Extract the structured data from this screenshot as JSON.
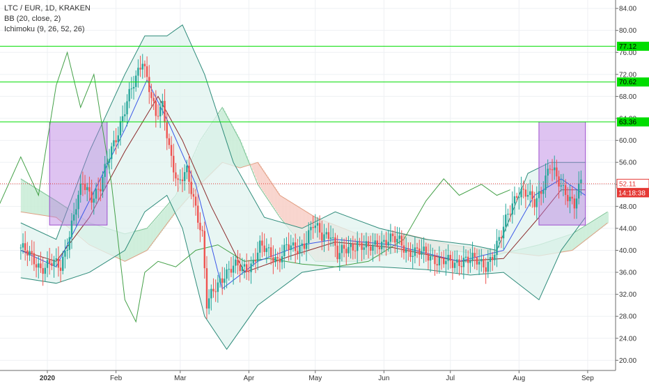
{
  "chart_data": {
    "type": "candlestick",
    "title": "LTC / EUR, 1D, KRAKEN",
    "indicators": [
      "BB (20, close, 2)",
      "Ichimoku (9, 26, 52, 26)"
    ],
    "ylim": [
      18,
      86
    ],
    "y_ticks": [
      "20.00",
      "24.00",
      "28.00",
      "32.00",
      "36.00",
      "40.00",
      "44.00",
      "48.00",
      "52.00",
      "56.00",
      "60.00",
      "64.00",
      "68.00",
      "72.00",
      "76.00",
      "80.00",
      "84.00"
    ],
    "x_labels": [
      "2020",
      "Feb",
      "Mar",
      "Apr",
      "May",
      "Jun",
      "Jul",
      "Aug",
      "Sep"
    ],
    "horizontal_levels": [
      {
        "label": "77.12",
        "value": 77.12,
        "color": "#00dd00"
      },
      {
        "label": "70.62",
        "value": 70.62,
        "color": "#00dd00"
      },
      {
        "label": "63.36",
        "value": 63.36,
        "color": "#00dd00"
      }
    ],
    "last_price": {
      "label": "52.11",
      "value": 52.11,
      "countdown": "14:18:38",
      "color": "#e53935"
    },
    "boxes": [
      {
        "from": "2020-01-02",
        "to": "2020-01-28",
        "low": 44.6,
        "high": 63.36
      },
      {
        "from": "2020-08-10",
        "to": "2020-08-31",
        "low": 44.6,
        "high": 63.36
      }
    ],
    "price_series": [
      {
        "date": "2019-12-20",
        "close": 40.5
      },
      {
        "date": "2019-12-25",
        "close": 38.5
      },
      {
        "date": "2019-12-29",
        "close": 37.0
      },
      {
        "date": "2020-01-03",
        "close": 37.5
      },
      {
        "date": "2020-01-07",
        "close": 37.0
      },
      {
        "date": "2020-01-10",
        "close": 41.5
      },
      {
        "date": "2020-01-14",
        "close": 48.0
      },
      {
        "date": "2020-01-17",
        "close": 52.0
      },
      {
        "date": "2020-01-21",
        "close": 50.0
      },
      {
        "date": "2020-01-25",
        "close": 51.5
      },
      {
        "date": "2020-01-29",
        "close": 57.0
      },
      {
        "date": "2020-02-02",
        "close": 62.0
      },
      {
        "date": "2020-02-06",
        "close": 67.0
      },
      {
        "date": "2020-02-10",
        "close": 71.0
      },
      {
        "date": "2020-02-13",
        "close": 75.0
      },
      {
        "date": "2020-02-16",
        "close": 70.0
      },
      {
        "date": "2020-02-19",
        "close": 64.0
      },
      {
        "date": "2020-02-22",
        "close": 66.0
      },
      {
        "date": "2020-02-25",
        "close": 59.0
      },
      {
        "date": "2020-02-29",
        "close": 52.0
      },
      {
        "date": "2020-03-04",
        "close": 54.0
      },
      {
        "date": "2020-03-08",
        "close": 48.0
      },
      {
        "date": "2020-03-11",
        "close": 43.0
      },
      {
        "date": "2020-03-13",
        "close": 30.0
      },
      {
        "date": "2020-03-17",
        "close": 33.0
      },
      {
        "date": "2020-03-21",
        "close": 36.0
      },
      {
        "date": "2020-03-25",
        "close": 37.0
      },
      {
        "date": "2020-03-29",
        "close": 36.5
      },
      {
        "date": "2020-04-02",
        "close": 37.5
      },
      {
        "date": "2020-04-06",
        "close": 40.5
      },
      {
        "date": "2020-04-10",
        "close": 39.5
      },
      {
        "date": "2020-04-14",
        "close": 38.5
      },
      {
        "date": "2020-04-18",
        "close": 40.5
      },
      {
        "date": "2020-04-22",
        "close": 40.0
      },
      {
        "date": "2020-04-26",
        "close": 41.5
      },
      {
        "date": "2020-04-30",
        "close": 44.5
      },
      {
        "date": "2020-05-04",
        "close": 42.5
      },
      {
        "date": "2020-05-08",
        "close": 43.5
      },
      {
        "date": "2020-05-11",
        "close": 39.0
      },
      {
        "date": "2020-05-15",
        "close": 40.0
      },
      {
        "date": "2020-05-20",
        "close": 41.5
      },
      {
        "date": "2020-05-25",
        "close": 40.0
      },
      {
        "date": "2020-05-30",
        "close": 41.5
      },
      {
        "date": "2020-06-03",
        "close": 42.0
      },
      {
        "date": "2020-06-08",
        "close": 41.5
      },
      {
        "date": "2020-06-12",
        "close": 40.0
      },
      {
        "date": "2020-06-17",
        "close": 39.5
      },
      {
        "date": "2020-06-22",
        "close": 39.0
      },
      {
        "date": "2020-06-27",
        "close": 38.0
      },
      {
        "date": "2020-07-02",
        "close": 37.5
      },
      {
        "date": "2020-07-07",
        "close": 38.5
      },
      {
        "date": "2020-07-12",
        "close": 38.0
      },
      {
        "date": "2020-07-17",
        "close": 37.5
      },
      {
        "date": "2020-07-21",
        "close": 39.5
      },
      {
        "date": "2020-07-24",
        "close": 42.5
      },
      {
        "date": "2020-07-27",
        "close": 47.0
      },
      {
        "date": "2020-07-31",
        "close": 50.5
      },
      {
        "date": "2020-08-04",
        "close": 50.0
      },
      {
        "date": "2020-08-08",
        "close": 49.0
      },
      {
        "date": "2020-08-12",
        "close": 52.0
      },
      {
        "date": "2020-08-15",
        "close": 55.0
      },
      {
        "date": "2020-08-18",
        "close": 53.0
      },
      {
        "date": "2020-08-22",
        "close": 51.0
      },
      {
        "date": "2020-08-26",
        "close": 48.0
      },
      {
        "date": "2020-08-29",
        "close": 52.11
      }
    ],
    "bb_upper": [
      {
        "date": "2019-12-20",
        "v": 45
      },
      {
        "date": "2020-01-05",
        "v": 42
      },
      {
        "date": "2020-01-20",
        "v": 58
      },
      {
        "date": "2020-02-05",
        "v": 72
      },
      {
        "date": "2020-02-14",
        "v": 79
      },
      {
        "date": "2020-02-24",
        "v": 79
      },
      {
        "date": "2020-03-02",
        "v": 81
      },
      {
        "date": "2020-03-12",
        "v": 72
      },
      {
        "date": "2020-03-25",
        "v": 56
      },
      {
        "date": "2020-04-08",
        "v": 46
      },
      {
        "date": "2020-04-25",
        "v": 44
      },
      {
        "date": "2020-05-10",
        "v": 47
      },
      {
        "date": "2020-05-30",
        "v": 44
      },
      {
        "date": "2020-06-20",
        "v": 42
      },
      {
        "date": "2020-07-10",
        "v": 41
      },
      {
        "date": "2020-07-22",
        "v": 40
      },
      {
        "date": "2020-08-05",
        "v": 54
      },
      {
        "date": "2020-08-15",
        "v": 56
      },
      {
        "date": "2020-08-31",
        "v": 56
      }
    ],
    "bb_lower": [
      {
        "date": "2019-12-20",
        "v": 35
      },
      {
        "date": "2020-01-05",
        "v": 34
      },
      {
        "date": "2020-01-20",
        "v": 36
      },
      {
        "date": "2020-02-05",
        "v": 40
      },
      {
        "date": "2020-02-14",
        "v": 47
      },
      {
        "date": "2020-02-24",
        "v": 50
      },
      {
        "date": "2020-03-02",
        "v": 44
      },
      {
        "date": "2020-03-12",
        "v": 28
      },
      {
        "date": "2020-03-22",
        "v": 22
      },
      {
        "date": "2020-04-05",
        "v": 30
      },
      {
        "date": "2020-04-25",
        "v": 36
      },
      {
        "date": "2020-05-10",
        "v": 37
      },
      {
        "date": "2020-05-30",
        "v": 37
      },
      {
        "date": "2020-06-20",
        "v": 36.5
      },
      {
        "date": "2020-07-10",
        "v": 35.5
      },
      {
        "date": "2020-07-25",
        "v": 36
      },
      {
        "date": "2020-08-10",
        "v": 31
      },
      {
        "date": "2020-08-20",
        "v": 40
      },
      {
        "date": "2020-08-31",
        "v": 46
      }
    ],
    "bb_basis": [
      {
        "date": "2019-12-20",
        "v": 40
      },
      {
        "date": "2020-01-05",
        "v": 38
      },
      {
        "date": "2020-01-20",
        "v": 46
      },
      {
        "date": "2020-02-05",
        "v": 58
      },
      {
        "date": "2020-02-20",
        "v": 68
      },
      {
        "date": "2020-03-02",
        "v": 60
      },
      {
        "date": "2020-03-15",
        "v": 48
      },
      {
        "date": "2020-03-30",
        "v": 36
      },
      {
        "date": "2020-04-20",
        "v": 39
      },
      {
        "date": "2020-05-10",
        "v": 41.5
      },
      {
        "date": "2020-06-05",
        "v": 40.5
      },
      {
        "date": "2020-07-05",
        "v": 38
      },
      {
        "date": "2020-07-25",
        "v": 38.5
      },
      {
        "date": "2020-08-10",
        "v": 46
      },
      {
        "date": "2020-08-20",
        "v": 51
      },
      {
        "date": "2020-08-31",
        "v": 51
      }
    ],
    "tenkan": [
      {
        "date": "2019-12-20",
        "v": 40
      },
      {
        "date": "2020-01-05",
        "v": 37
      },
      {
        "date": "2020-01-20",
        "v": 49
      },
      {
        "date": "2020-02-05",
        "v": 62
      },
      {
        "date": "2020-02-15",
        "v": 71
      },
      {
        "date": "2020-02-25",
        "v": 63
      },
      {
        "date": "2020-03-08",
        "v": 52
      },
      {
        "date": "2020-03-20",
        "v": 33
      },
      {
        "date": "2020-04-05",
        "v": 38
      },
      {
        "date": "2020-04-25",
        "v": 41
      },
      {
        "date": "2020-05-10",
        "v": 42
      },
      {
        "date": "2020-06-05",
        "v": 41
      },
      {
        "date": "2020-07-05",
        "v": 38
      },
      {
        "date": "2020-07-25",
        "v": 40
      },
      {
        "date": "2020-08-08",
        "v": 50
      },
      {
        "date": "2020-08-20",
        "v": 53
      },
      {
        "date": "2020-08-31",
        "v": 50
      }
    ],
    "lagging": [
      {
        "date": "2019-12-10",
        "v": 48
      },
      {
        "date": "2019-12-20",
        "v": 57
      },
      {
        "date": "2019-12-28",
        "v": 50
      },
      {
        "date": "2020-01-05",
        "v": 70
      },
      {
        "date": "2020-01-10",
        "v": 76
      },
      {
        "date": "2020-01-16",
        "v": 66
      },
      {
        "date": "2020-01-22",
        "v": 72
      },
      {
        "date": "2020-01-30",
        "v": 52
      },
      {
        "date": "2020-02-05",
        "v": 31
      },
      {
        "date": "2020-02-10",
        "v": 27
      },
      {
        "date": "2020-02-14",
        "v": 36
      },
      {
        "date": "2020-02-20",
        "v": 38
      },
      {
        "date": "2020-02-28",
        "v": 37
      },
      {
        "date": "2020-03-08",
        "v": 40
      },
      {
        "date": "2020-03-18",
        "v": 41
      },
      {
        "date": "2020-03-30",
        "v": 38
      },
      {
        "date": "2020-04-10",
        "v": 38.5
      },
      {
        "date": "2020-04-25",
        "v": 37.5
      },
      {
        "date": "2020-05-10",
        "v": 37
      },
      {
        "date": "2020-05-25",
        "v": 38
      },
      {
        "date": "2020-06-10",
        "v": 42
      },
      {
        "date": "2020-06-20",
        "v": 49
      },
      {
        "date": "2020-06-28",
        "v": 53
      },
      {
        "date": "2020-07-05",
        "v": 50
      },
      {
        "date": "2020-07-15",
        "v": 52
      },
      {
        "date": "2020-07-22",
        "v": 50
      },
      {
        "date": "2020-07-28",
        "v": 51
      }
    ],
    "cloud": [
      {
        "date": "2019-12-20",
        "a": 53,
        "b": 47
      },
      {
        "date": "2020-01-05",
        "a": 49,
        "b": 46
      },
      {
        "date": "2020-01-20",
        "a": 45,
        "b": 41
      },
      {
        "date": "2020-02-05",
        "a": 43,
        "b": 38
      },
      {
        "date": "2020-02-15",
        "a": 44,
        "b": 40
      },
      {
        "date": "2020-02-28",
        "a": 50,
        "b": 47
      },
      {
        "date": "2020-03-10",
        "a": 60,
        "b": 52
      },
      {
        "date": "2020-03-20",
        "a": 66,
        "b": 56
      },
      {
        "date": "2020-03-28",
        "a": 60,
        "b": 55
      },
      {
        "date": "2020-04-05",
        "a": 52,
        "b": 56
      },
      {
        "date": "2020-04-15",
        "a": 46,
        "b": 50
      },
      {
        "date": "2020-05-01",
        "a": 38,
        "b": 46
      },
      {
        "date": "2020-05-20",
        "a": 38,
        "b": 43
      },
      {
        "date": "2020-06-10",
        "a": 40,
        "b": 43
      },
      {
        "date": "2020-07-01",
        "a": 40,
        "b": 41
      },
      {
        "date": "2020-07-20",
        "a": 39,
        "b": 40
      },
      {
        "date": "2020-08-10",
        "a": 41,
        "b": 39
      },
      {
        "date": "2020-08-25",
        "a": 43,
        "b": 40
      },
      {
        "date": "2020-09-10",
        "a": 47,
        "b": 45
      }
    ]
  },
  "colors": {
    "bull": "#26a69a",
    "bear": "#ef5350",
    "bollinger": "#2e8b7a",
    "bollinger_fill": "#e0f3ef",
    "basis": "#8b2a2a",
    "tenkan": "#3a57e8",
    "lagging": "#43a047",
    "cloud_bull": "#c8ecd6",
    "cloud_bear": "#f8cfc7",
    "level": "#00dd00",
    "box": "#9c4dcc"
  }
}
